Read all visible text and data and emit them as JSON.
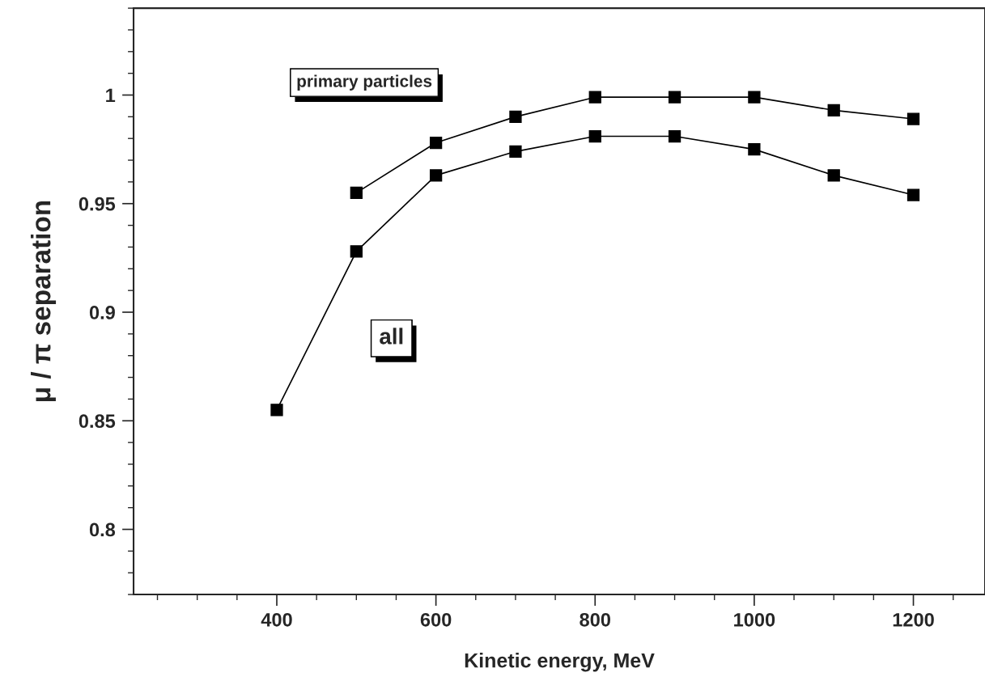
{
  "chart_data": {
    "type": "line",
    "xlabel": "Kinetic energy, MeV",
    "ylabel": "μ / π separation",
    "x": [
      400,
      500,
      600,
      700,
      800,
      900,
      1000,
      1100,
      1200
    ],
    "series": [
      {
        "name": "primary particles",
        "color": "#000000",
        "values": [
          null,
          0.955,
          0.978,
          0.99,
          0.999,
          0.999,
          0.999,
          0.993,
          0.989
        ]
      },
      {
        "name": "all",
        "color": "#000000",
        "values": [
          0.855,
          0.928,
          0.963,
          0.974,
          0.981,
          0.981,
          0.975,
          0.963,
          0.954
        ]
      }
    ],
    "xlim": [
      220,
      1290
    ],
    "ylim": [
      0.77,
      1.04
    ],
    "xticks": [
      {
        "value": 250,
        "label": null
      },
      {
        "value": 300,
        "label": null
      },
      {
        "value": 350,
        "label": null
      },
      400,
      {
        "value": 450,
        "label": null
      },
      {
        "value": 500,
        "label": null
      },
      {
        "value": 550,
        "label": null
      },
      600,
      {
        "value": 650,
        "label": null
      },
      {
        "value": 700,
        "label": null
      },
      {
        "value": 750,
        "label": null
      },
      800,
      {
        "value": 850,
        "label": null
      },
      {
        "value": 900,
        "label": null
      },
      {
        "value": 950,
        "label": null
      },
      1000,
      {
        "value": 1050,
        "label": null
      },
      {
        "value": 1100,
        "label": null
      },
      {
        "value": 1150,
        "label": null
      },
      1200,
      {
        "value": 1250,
        "label": null
      }
    ],
    "yticks": [
      {
        "value": 0.77,
        "label": null
      },
      {
        "value": 0.78,
        "label": null
      },
      {
        "value": 0.79,
        "label": null
      },
      0.8,
      {
        "value": 0.81,
        "label": null
      },
      {
        "value": 0.82,
        "label": null
      },
      {
        "value": 0.83,
        "label": null
      },
      {
        "value": 0.84,
        "label": null
      },
      0.85,
      {
        "value": 0.86,
        "label": null
      },
      {
        "value": 0.87,
        "label": null
      },
      {
        "value": 0.88,
        "label": null
      },
      {
        "value": 0.89,
        "label": null
      },
      0.9,
      {
        "value": 0.91,
        "label": null
      },
      {
        "value": 0.92,
        "label": null
      },
      {
        "value": 0.93,
        "label": null
      },
      {
        "value": 0.94,
        "label": null
      },
      0.95,
      {
        "value": 0.96,
        "label": null
      },
      {
        "value": 0.97,
        "label": null
      },
      {
        "value": 0.98,
        "label": null
      },
      {
        "value": 0.99,
        "label": null
      },
      {
        "value": 1,
        "label": "1"
      },
      {
        "value": 1.01,
        "label": null
      },
      {
        "value": 1.02,
        "label": null
      },
      {
        "value": 1.03,
        "label": null
      },
      {
        "value": 1.04,
        "label": null
      }
    ],
    "marker": "square",
    "line_style": "solid",
    "grid": false,
    "legend": false
  }
}
